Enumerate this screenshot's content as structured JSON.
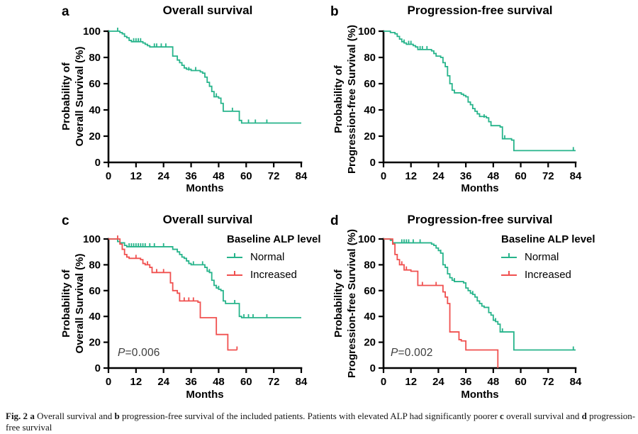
{
  "colors": {
    "normal_green": "#27b48b",
    "increased_red": "#f0504f",
    "axis_black": "#000000",
    "pvalue_text": "#3d3d3d"
  },
  "figure": {
    "caption": {
      "segments": [
        {
          "text": "Fig. 2",
          "bold": true
        },
        {
          "text": "  ",
          "bold": false
        },
        {
          "text": "a",
          "bold": true
        },
        {
          "text": " Overall survival and ",
          "bold": false
        },
        {
          "text": "b",
          "bold": true
        },
        {
          "text": " progression-free survival of the included patients. Patients with elevated ALP had significantly poorer ",
          "bold": false
        },
        {
          "text": "c",
          "bold": true
        },
        {
          "text": " overall survival and ",
          "bold": false
        },
        {
          "text": "d",
          "bold": true
        },
        {
          "text": " progression-free survival",
          "bold": false
        }
      ]
    }
  },
  "chart_data": [
    {
      "id": "a",
      "panel_label": "a",
      "type": "line",
      "subtype": "kaplan-meier-step",
      "title": "Overall survival",
      "ylabel_line1": "Probability of",
      "ylabel_line2": "Overall Survival (%)",
      "xlabel": "Months",
      "xlim": [
        0,
        84
      ],
      "ylim": [
        0,
        100
      ],
      "xticks": [
        0,
        12,
        24,
        36,
        48,
        60,
        72,
        84
      ],
      "yticks": [
        0,
        20,
        40,
        60,
        80,
        100
      ],
      "series": [
        {
          "color": "#27b48b",
          "steps": [
            [
              0,
              100
            ],
            [
              5,
              99
            ],
            [
              6,
              98
            ],
            [
              7,
              96
            ],
            [
              8,
              95
            ],
            [
              9,
              93
            ],
            [
              10,
              92
            ],
            [
              15,
              91
            ],
            [
              16,
              90
            ],
            [
              17,
              89
            ],
            [
              18,
              88
            ],
            [
              28,
              81
            ],
            [
              30,
              78
            ],
            [
              31,
              76
            ],
            [
              32,
              74
            ],
            [
              33,
              72
            ],
            [
              34,
              71
            ],
            [
              36,
              70
            ],
            [
              40,
              69
            ],
            [
              41,
              68
            ],
            [
              42,
              65
            ],
            [
              43,
              61
            ],
            [
              44,
              58
            ],
            [
              45,
              54
            ],
            [
              46,
              50
            ],
            [
              48,
              49
            ],
            [
              49,
              45
            ],
            [
              50,
              39
            ],
            [
              57,
              32
            ],
            [
              58,
              30
            ],
            [
              84,
              30
            ]
          ],
          "censors": [
            [
              4,
              100
            ],
            [
              11,
              92
            ],
            [
              12,
              92
            ],
            [
              13,
              92
            ],
            [
              14,
              92
            ],
            [
              20,
              88
            ],
            [
              21,
              88
            ],
            [
              23,
              88
            ],
            [
              25,
              88
            ],
            [
              35,
              70
            ],
            [
              38,
              70
            ],
            [
              47,
              50
            ],
            [
              54,
              39
            ],
            [
              61,
              30
            ],
            [
              64,
              30
            ],
            [
              69,
              30
            ]
          ]
        }
      ]
    },
    {
      "id": "b",
      "panel_label": "b",
      "type": "line",
      "subtype": "kaplan-meier-step",
      "title": "Progression-free survival",
      "ylabel_line1": "Probability of",
      "ylabel_line2": "Progression-free Survival (%)",
      "xlabel": "Months",
      "xlim": [
        0,
        84
      ],
      "ylim": [
        0,
        100
      ],
      "xticks": [
        0,
        12,
        24,
        36,
        48,
        60,
        72,
        84
      ],
      "yticks": [
        0,
        20,
        40,
        60,
        80,
        100
      ],
      "series": [
        {
          "color": "#27b48b",
          "steps": [
            [
              0,
              100
            ],
            [
              3,
              99
            ],
            [
              5,
              98
            ],
            [
              6,
              96
            ],
            [
              7,
              94
            ],
            [
              8,
              92
            ],
            [
              9,
              91
            ],
            [
              10,
              90
            ],
            [
              13,
              89
            ],
            [
              14,
              88
            ],
            [
              15,
              86
            ],
            [
              21,
              85
            ],
            [
              22,
              83
            ],
            [
              23,
              81
            ],
            [
              25,
              80
            ],
            [
              26,
              76
            ],
            [
              27,
              73
            ],
            [
              28,
              66
            ],
            [
              29,
              60
            ],
            [
              30,
              55
            ],
            [
              31,
              53
            ],
            [
              34,
              52
            ],
            [
              35,
              51
            ],
            [
              36,
              50
            ],
            [
              37,
              46
            ],
            [
              38,
              44
            ],
            [
              39,
              41
            ],
            [
              40,
              39
            ],
            [
              41,
              37
            ],
            [
              42,
              35
            ],
            [
              45,
              34
            ],
            [
              46,
              31
            ],
            [
              47,
              28
            ],
            [
              51,
              27
            ],
            [
              52,
              18
            ],
            [
              56,
              17
            ],
            [
              57,
              9
            ],
            [
              84,
              9
            ]
          ],
          "censors": [
            [
              9,
              91
            ],
            [
              11,
              90
            ],
            [
              12,
              90
            ],
            [
              16,
              86
            ],
            [
              17,
              86
            ],
            [
              19,
              86
            ],
            [
              44,
              34
            ],
            [
              53,
              18
            ],
            [
              83,
              9
            ]
          ]
        }
      ]
    },
    {
      "id": "c",
      "panel_label": "c",
      "type": "line",
      "subtype": "kaplan-meier-step",
      "title": "Overall survival",
      "ylabel_line1": "Probability of",
      "ylabel_line2": "Overall Survival (%)",
      "xlabel": "Months",
      "xlim": [
        0,
        84
      ],
      "ylim": [
        0,
        100
      ],
      "xticks": [
        0,
        12,
        24,
        36,
        48,
        60,
        72,
        84
      ],
      "yticks": [
        0,
        20,
        40,
        60,
        80,
        100
      ],
      "legend": {
        "title": "Baseline ALP level",
        "entries": [
          "Normal",
          "Increased"
        ]
      },
      "p_value": {
        "italic": "P",
        "rest": "=0.006"
      },
      "series": [
        {
          "name": "Normal",
          "color": "#27b48b",
          "steps": [
            [
              0,
              100
            ],
            [
              4,
              98
            ],
            [
              5,
              97
            ],
            [
              7,
              95
            ],
            [
              8,
              94
            ],
            [
              28,
              92
            ],
            [
              30,
              90
            ],
            [
              31,
              88
            ],
            [
              32,
              86
            ],
            [
              33,
              85
            ],
            [
              34,
              83
            ],
            [
              35,
              81
            ],
            [
              36,
              80
            ],
            [
              42,
              78
            ],
            [
              43,
              75
            ],
            [
              44,
              74
            ],
            [
              45,
              68
            ],
            [
              46,
              64
            ],
            [
              47,
              62
            ],
            [
              48,
              61
            ],
            [
              49,
              60
            ],
            [
              50,
              52
            ],
            [
              51,
              50
            ],
            [
              57,
              40
            ],
            [
              58,
              39
            ],
            [
              84,
              39
            ]
          ],
          "censors": [
            [
              9,
              94
            ],
            [
              10,
              94
            ],
            [
              11,
              94
            ],
            [
              12,
              94
            ],
            [
              13,
              94
            ],
            [
              14,
              94
            ],
            [
              15,
              94
            ],
            [
              16,
              94
            ],
            [
              18,
              94
            ],
            [
              20,
              94
            ],
            [
              24,
              94
            ],
            [
              37,
              80
            ],
            [
              41,
              80
            ],
            [
              44,
              74
            ],
            [
              48,
              61
            ],
            [
              55,
              50
            ],
            [
              59,
              39
            ],
            [
              61,
              39
            ],
            [
              63,
              39
            ],
            [
              69,
              39
            ]
          ]
        },
        {
          "name": "Increased",
          "color": "#f0504f",
          "steps": [
            [
              0,
              100
            ],
            [
              5,
              96
            ],
            [
              6,
              92
            ],
            [
              7,
              88
            ],
            [
              8,
              86
            ],
            [
              9,
              85
            ],
            [
              14,
              84
            ],
            [
              15,
              81
            ],
            [
              16,
              80
            ],
            [
              18,
              78
            ],
            [
              19,
              74
            ],
            [
              27,
              66
            ],
            [
              28,
              60
            ],
            [
              30,
              58
            ],
            [
              31,
              52
            ],
            [
              39,
              51
            ],
            [
              40,
              39
            ],
            [
              47,
              26
            ],
            [
              52,
              14
            ],
            [
              56,
              14
            ]
          ],
          "censors": [
            [
              4,
              100
            ],
            [
              12,
              85
            ],
            [
              17,
              80
            ],
            [
              21,
              74
            ],
            [
              24,
              74
            ],
            [
              33,
              52
            ],
            [
              35,
              52
            ],
            [
              37,
              52
            ],
            [
              56,
              14
            ]
          ]
        }
      ]
    },
    {
      "id": "d",
      "panel_label": "d",
      "type": "line",
      "subtype": "kaplan-meier-step",
      "title": "Progression-free survival",
      "ylabel_line1": "Probability of",
      "ylabel_line2": "Progression-free Survival (%)",
      "xlabel": "Months",
      "xlim": [
        0,
        84
      ],
      "ylim": [
        0,
        100
      ],
      "xticks": [
        0,
        12,
        24,
        36,
        48,
        60,
        72,
        84
      ],
      "yticks": [
        0,
        20,
        40,
        60,
        80,
        100
      ],
      "legend": {
        "title": "Baseline ALP level",
        "entries": [
          "Normal",
          "Increased"
        ]
      },
      "p_value": {
        "italic": "P",
        "rest": "=0.002"
      },
      "series": [
        {
          "name": "Normal",
          "color": "#27b48b",
          "steps": [
            [
              0,
              100
            ],
            [
              3,
              99
            ],
            [
              4,
              97
            ],
            [
              21,
              96
            ],
            [
              22,
              95
            ],
            [
              23,
              93
            ],
            [
              24,
              91
            ],
            [
              25,
              89
            ],
            [
              26,
              80
            ],
            [
              27,
              78
            ],
            [
              28,
              73
            ],
            [
              29,
              70
            ],
            [
              30,
              68
            ],
            [
              31,
              67
            ],
            [
              35,
              66
            ],
            [
              36,
              62
            ],
            [
              37,
              60
            ],
            [
              38,
              58
            ],
            [
              39,
              57
            ],
            [
              40,
              55
            ],
            [
              41,
              52
            ],
            [
              42,
              50
            ],
            [
              43,
              48
            ],
            [
              44,
              47
            ],
            [
              46,
              43
            ],
            [
              47,
              41
            ],
            [
              48,
              37
            ],
            [
              49,
              36
            ],
            [
              50,
              34
            ],
            [
              51,
              28
            ],
            [
              57,
              14
            ],
            [
              84,
              14
            ]
          ],
          "censors": [
            [
              8,
              97
            ],
            [
              9,
              97
            ],
            [
              10,
              97
            ],
            [
              11,
              97
            ],
            [
              13,
              97
            ],
            [
              16,
              97
            ],
            [
              25,
              89
            ],
            [
              31,
              67
            ],
            [
              39,
              57
            ],
            [
              49,
              36
            ],
            [
              52,
              28
            ],
            [
              83,
              14
            ]
          ]
        },
        {
          "name": "Increased",
          "color": "#f0504f",
          "steps": [
            [
              0,
              100
            ],
            [
              4,
              96
            ],
            [
              5,
              88
            ],
            [
              6,
              84
            ],
            [
              7,
              80
            ],
            [
              9,
              76
            ],
            [
              12,
              75
            ],
            [
              15,
              64
            ],
            [
              26,
              59
            ],
            [
              27,
              55
            ],
            [
              28,
              50
            ],
            [
              29,
              28
            ],
            [
              33,
              22
            ],
            [
              34,
              21
            ],
            [
              36,
              14
            ],
            [
              50,
              0
            ]
          ],
          "censors": [
            [
              4,
              96
            ],
            [
              8,
              80
            ],
            [
              10,
              76
            ],
            [
              17,
              64
            ],
            [
              23,
              64
            ]
          ]
        }
      ]
    }
  ]
}
